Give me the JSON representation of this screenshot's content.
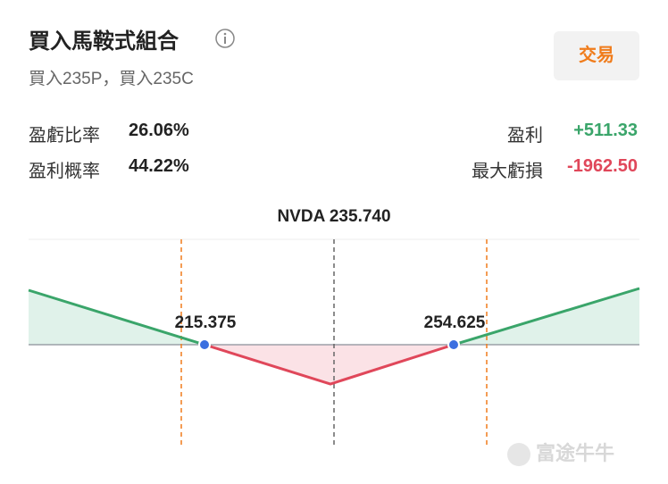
{
  "header": {
    "title": "買入馬鞍式組合",
    "subtitle": "買入235P，買入235C",
    "button": "交易"
  },
  "stats": {
    "left": [
      {
        "label": "盈虧比率",
        "value": "26.06%"
      },
      {
        "label": "盈利概率",
        "value": "44.22%"
      }
    ],
    "right": [
      {
        "label": "盈利",
        "value": "+511.33"
      },
      {
        "label": "最大虧損",
        "value": "-1962.50"
      }
    ]
  },
  "diagram": {
    "price_label": "NVDA 235.740",
    "breakevens": [
      "215.375",
      "254.625"
    ]
  },
  "watermark": "富途牛牛"
}
